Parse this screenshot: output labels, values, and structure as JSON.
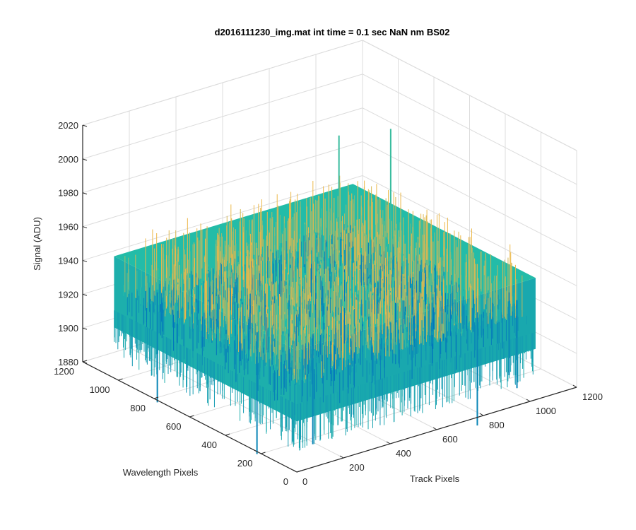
{
  "chart_data": {
    "type": "surface",
    "title": "d2016111230_img.mat int time = 0.1 sec  NaN nm BS02",
    "xlabel": "Track Pixels",
    "ylabel": "Wavelength Pixels",
    "zlabel": "Signal (ADU)",
    "xlim": [
      0,
      1200
    ],
    "ylim": [
      0,
      1200
    ],
    "zlim": [
      1880,
      2020
    ],
    "xticks": [
      "0",
      "200",
      "400",
      "600",
      "800",
      "1000",
      "1200"
    ],
    "yticks": [
      "0",
      "200",
      "400",
      "600",
      "800",
      "1000",
      "1200"
    ],
    "zticks": [
      "1880",
      "1900",
      "1920",
      "1940",
      "1960",
      "1980",
      "2000",
      "2020"
    ],
    "grid": true,
    "colormap": "parula",
    "surface_extent": {
      "x": [
        0,
        1024
      ],
      "y": [
        0,
        1024
      ]
    },
    "z_typical_range": [
      1910,
      1960
    ],
    "z_mean": 1937,
    "spikes": [
      {
        "x": 900,
        "y": 650,
        "z": 2010,
        "sign": 1
      },
      {
        "x": 770,
        "y": 770,
        "z": 2005,
        "sign": 1
      },
      {
        "x": 120,
        "y": 380,
        "z": 1865,
        "sign": -1
      },
      {
        "x": 260,
        "y": 250,
        "z": 1872,
        "sign": -1
      },
      {
        "x": 820,
        "y": 60,
        "z": 1870,
        "sign": -1
      },
      {
        "x": 60,
        "y": 860,
        "z": 1872,
        "sign": -1
      },
      {
        "x": 990,
        "y": 60,
        "z": 1885,
        "sign": -1
      },
      {
        "x": 1010,
        "y": 130,
        "z": 1888,
        "sign": -1
      }
    ],
    "colors": {
      "low": "#0072BD",
      "mid": "#23BCA8",
      "high": "#ECB84A",
      "axis": "#262626",
      "grid": "#DCDCDC"
    }
  }
}
